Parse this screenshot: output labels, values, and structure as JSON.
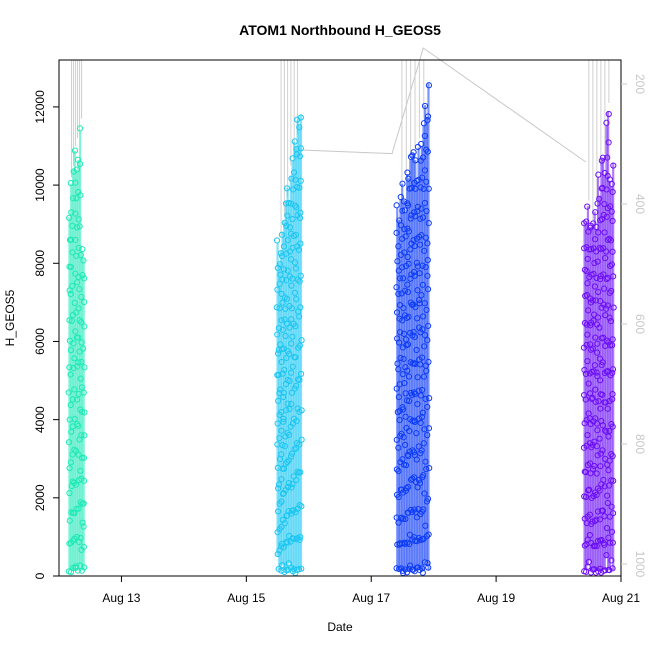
{
  "chart_data": {
    "type": "scatter",
    "title": "ATOM1 Northbound H_GEOS5",
    "xlabel": "Date",
    "ylabel": "H_GEOS5",
    "x_axis": {
      "type": "date",
      "range": [
        "2016-08-12",
        "2016-08-21"
      ],
      "ticks": [
        {
          "date": "2016-08-13",
          "label": "Aug 13"
        },
        {
          "date": "2016-08-15",
          "label": "Aug 15"
        },
        {
          "date": "2016-08-17",
          "label": "Aug 17"
        },
        {
          "date": "2016-08-19",
          "label": "Aug 19"
        },
        {
          "date": "2016-08-21",
          "label": "Aug 21"
        }
      ]
    },
    "y_axis": {
      "range": [
        0,
        13200
      ],
      "ticks": [
        {
          "value": 0,
          "label": "0"
        },
        {
          "value": 2000,
          "label": "2000"
        },
        {
          "value": 4000,
          "label": "4000"
        },
        {
          "value": 6000,
          "label": "6000"
        },
        {
          "value": 8000,
          "label": "8000"
        },
        {
          "value": 10000,
          "label": "10000"
        },
        {
          "value": 12000,
          "label": "12000"
        }
      ]
    },
    "y2_axis": {
      "color": "#c8c8c8",
      "range": [
        1020,
        160
      ],
      "ticks": [
        {
          "value": 200,
          "label": "200"
        },
        {
          "value": 400,
          "label": "400"
        },
        {
          "value": 600,
          "label": "600"
        },
        {
          "value": 800,
          "label": "800"
        },
        {
          "value": 1000,
          "label": "1000"
        }
      ]
    },
    "overlay_line": {
      "color": "#c8c8c8",
      "description_axis": "y2"
    },
    "series": [
      {
        "color": "#1de9b6",
        "start": "2016-08-12 04:00",
        "end": "2016-08-12 09:30",
        "ymin": 150,
        "ymax": 11700,
        "peak_profile": [
          10200,
          10500,
          11000,
          11200,
          11400,
          11700,
          8600
        ]
      },
      {
        "color": "#1bc6f2",
        "start": "2016-08-15 12:00",
        "end": "2016-08-15 21:00",
        "ymin": 150,
        "ymax": 12500,
        "peak_profile": [
          8700,
          9200,
          9700,
          10500,
          11000,
          11300,
          12500
        ]
      },
      {
        "color": "#0f3cf5",
        "start": "2016-08-17 10:00",
        "end": "2016-08-17 22:00",
        "ymin": 150,
        "ymax": 12800,
        "peak_profile": [
          10000,
          10300,
          10700,
          11000,
          11200,
          11700,
          12800
        ]
      },
      {
        "color": "#6b0ff5",
        "start": "2016-08-20 10:00",
        "end": "2016-08-20 21:00",
        "ymin": 150,
        "ymax": 12100,
        "peak_profile": [
          9600,
          9100,
          9700,
          10500,
          10800,
          12100,
          11000
        ]
      }
    ],
    "overlay_points_y2": [
      {
        "date": "2016-08-15 21:00",
        "value": 310
      },
      {
        "date": "2016-08-17 08:00",
        "value": 316
      },
      {
        "date": "2016-08-17 20:00",
        "value": 140
      },
      {
        "date": "2016-08-20 10:30",
        "value": 330
      }
    ]
  }
}
